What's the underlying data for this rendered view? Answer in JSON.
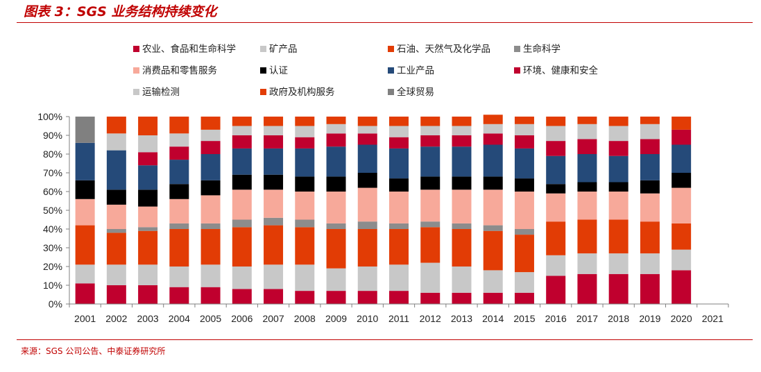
{
  "header": {
    "title": "图表 3：SGS 业务结构持续变化"
  },
  "footer": {
    "source": "来源：SGS 公司公告、中泰证券研究所"
  },
  "chart_data": {
    "type": "bar",
    "stacked": true,
    "categories": [
      "2001",
      "2002",
      "2003",
      "2004",
      "2005",
      "2006",
      "2007",
      "2008",
      "2009",
      "2010",
      "2011",
      "2012",
      "2013",
      "2014",
      "2015",
      "2016",
      "2017",
      "2018",
      "2019",
      "2020",
      "2021"
    ],
    "ylim": [
      0,
      100
    ],
    "yticks": [
      "0%",
      "10%",
      "20%",
      "30%",
      "40%",
      "50%",
      "60%",
      "70%",
      "80%",
      "90%",
      "100%"
    ],
    "legend_position": "top",
    "grid": false,
    "series": [
      {
        "name": "农业、食品和生命科学",
        "color": "#c0002e",
        "values": [
          11,
          10,
          10,
          9,
          9,
          8,
          8,
          7,
          7,
          7,
          7,
          6,
          6,
          6,
          6,
          15,
          16,
          16,
          16,
          18,
          0
        ]
      },
      {
        "name": "矿产品",
        "color": "#c8c8c8",
        "values": [
          10,
          11,
          11,
          11,
          12,
          12,
          13,
          14,
          12,
          13,
          14,
          16,
          14,
          12,
          11,
          11,
          11,
          11,
          11,
          11,
          0
        ]
      },
      {
        "name": "石油、天然气及化学品",
        "color": "#e23c05",
        "values": [
          21,
          17,
          18,
          20,
          19,
          21,
          21,
          20,
          21,
          20,
          19,
          19,
          20,
          21,
          20,
          18,
          18,
          18,
          17,
          14,
          0
        ]
      },
      {
        "name": "生命科学",
        "color": "#8c8c8c",
        "values": [
          0,
          2,
          2,
          3,
          3,
          4,
          4,
          4,
          3,
          4,
          3,
          3,
          3,
          3,
          3,
          0,
          0,
          0,
          0,
          0,
          0
        ]
      },
      {
        "name": "消费品和零售服务",
        "color": "#f7a99a",
        "values": [
          14,
          13,
          11,
          13,
          15,
          16,
          15,
          15,
          17,
          18,
          17,
          17,
          18,
          19,
          20,
          15,
          15,
          15,
          15,
          19,
          0
        ]
      },
      {
        "name": "认证",
        "color": "#000000",
        "values": [
          10,
          8,
          9,
          8,
          8,
          8,
          8,
          8,
          8,
          8,
          7,
          7,
          7,
          7,
          7,
          5,
          5,
          5,
          7,
          8,
          0
        ]
      },
      {
        "name": "工业产品",
        "color": "#254a79",
        "values": [
          20,
          21,
          13,
          13,
          14,
          14,
          14,
          15,
          16,
          15,
          16,
          16,
          16,
          17,
          16,
          15,
          15,
          14,
          14,
          15,
          0
        ]
      },
      {
        "name": "环境、健康和安全",
        "color": "#c0002e",
        "values": [
          0,
          0,
          7,
          7,
          7,
          7,
          7,
          6,
          7,
          6,
          6,
          6,
          6,
          6,
          7,
          8,
          8,
          8,
          8,
          8,
          0
        ]
      },
      {
        "name": "运输检测",
        "color": "#c8c8c8",
        "values": [
          0,
          9,
          9,
          7,
          6,
          5,
          5,
          6,
          5,
          4,
          6,
          5,
          5,
          5,
          6,
          8,
          8,
          8,
          8,
          0,
          0
        ]
      },
      {
        "name": "政府及机构服务",
        "color": "#e23c05",
        "values": [
          0,
          9,
          10,
          9,
          7,
          5,
          5,
          5,
          4,
          5,
          5,
          5,
          5,
          5,
          4,
          5,
          4,
          5,
          4,
          7,
          0
        ]
      },
      {
        "name": "全球贸易",
        "color": "#808080",
        "values": [
          14,
          0,
          0,
          0,
          0,
          0,
          0,
          0,
          0,
          0,
          0,
          0,
          0,
          0,
          0,
          0,
          0,
          0,
          0,
          0,
          0
        ]
      }
    ]
  }
}
